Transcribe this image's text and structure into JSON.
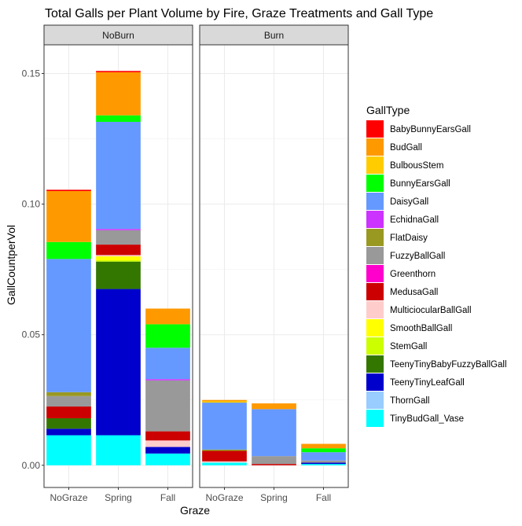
{
  "chart_data": {
    "type": "bar",
    "stacked": true,
    "title": "Total Galls per Plant Volume by Fire, Graze Treatments and Gall Type",
    "xlabel": "Graze",
    "ylabel": "GallCountperVol",
    "ylim": [
      -0.0085,
      0.161
    ],
    "yticks": [
      0.0,
      0.05,
      0.1,
      0.15
    ],
    "ytick_labels": [
      "0.00",
      "0.05",
      "0.10",
      "0.15"
    ],
    "grid": true,
    "legend": {
      "title": "GallType",
      "position": "right"
    },
    "categories": [
      "NoGraze",
      "Spring",
      "Fall"
    ],
    "panels": [
      {
        "name": "NoBurn",
        "stacks": [
          {
            "category": "NoGraze",
            "segments": [
              {
                "gall": "TinyBudGall_Vase",
                "value": 0.0115
              },
              {
                "gall": "TeenyTinyLeafGall",
                "value": 0.0025
              },
              {
                "gall": "TeenyTinyBabyFuzzyBallGall",
                "value": 0.004
              },
              {
                "gall": "MedusaGall",
                "value": 0.0045
              },
              {
                "gall": "FuzzyBallGall",
                "value": 0.004
              },
              {
                "gall": "FlatDaisy",
                "value": 0.0015
              },
              {
                "gall": "DaisyGall",
                "value": 0.051
              },
              {
                "gall": "BunnyEarsGall",
                "value": 0.0065
              },
              {
                "gall": "BudGall",
                "value": 0.0195
              },
              {
                "gall": "BabyBunnyEarsGall",
                "value": 0.0005
              }
            ]
          },
          {
            "category": "Spring",
            "segments": [
              {
                "gall": "TinyBudGall_Vase",
                "value": 0.0115
              },
              {
                "gall": "TeenyTinyLeafGall",
                "value": 0.056
              },
              {
                "gall": "TeenyTinyBabyFuzzyBallGall",
                "value": 0.0105
              },
              {
                "gall": "StemGall",
                "value": 0.0005
              },
              {
                "gall": "SmoothBallGall",
                "value": 0.0015
              },
              {
                "gall": "MulticiocularBallGall",
                "value": 0.0005
              },
              {
                "gall": "MedusaGall",
                "value": 0.004
              },
              {
                "gall": "FuzzyBallGall",
                "value": 0.0055
              },
              {
                "gall": "EchidnaGall",
                "value": 0.0005
              },
              {
                "gall": "DaisyGall",
                "value": 0.041
              },
              {
                "gall": "BunnyEarsGall",
                "value": 0.0025
              },
              {
                "gall": "BudGall",
                "value": 0.0165
              },
              {
                "gall": "BabyBunnyEarsGall",
                "value": 0.0005
              }
            ]
          },
          {
            "category": "Fall",
            "segments": [
              {
                "gall": "TinyBudGall_Vase",
                "value": 0.0045
              },
              {
                "gall": "TeenyTinyLeafGall",
                "value": 0.0025
              },
              {
                "gall": "MulticiocularBallGall",
                "value": 0.0025
              },
              {
                "gall": "MedusaGall",
                "value": 0.0035
              },
              {
                "gall": "FuzzyBallGall",
                "value": 0.0195
              },
              {
                "gall": "EchidnaGall",
                "value": 0.0005
              },
              {
                "gall": "DaisyGall",
                "value": 0.012
              },
              {
                "gall": "BunnyEarsGall",
                "value": 0.009
              },
              {
                "gall": "BudGall",
                "value": 0.006
              }
            ]
          }
        ]
      },
      {
        "name": "Burn",
        "stacks": [
          {
            "category": "NoGraze",
            "segments": [
              {
                "gall": "TinyBudGall_Vase",
                "value": 0.001
              },
              {
                "gall": "MulticiocularBallGall",
                "value": 0.0005
              },
              {
                "gall": "MedusaGall",
                "value": 0.004
              },
              {
                "gall": "FlatDaisy",
                "value": 0.0005
              },
              {
                "gall": "DaisyGall",
                "value": 0.018
              },
              {
                "gall": "BulbousStem",
                "value": 0.0005
              },
              {
                "gall": "BudGall",
                "value": 0.0005
              }
            ]
          },
          {
            "category": "Spring",
            "segments": [
              {
                "gall": "MedusaGall",
                "value": 0.0005
              },
              {
                "gall": "FuzzyBallGall",
                "value": 0.003
              },
              {
                "gall": "DaisyGall",
                "value": 0.018
              },
              {
                "gall": "BudGall",
                "value": 0.0022
              }
            ]
          },
          {
            "category": "Fall",
            "segments": [
              {
                "gall": "TinyBudGall_Vase",
                "value": 0.0005
              },
              {
                "gall": "TeenyTinyLeafGall",
                "value": 0.0005
              },
              {
                "gall": "FuzzyBallGall",
                "value": 0.0008
              },
              {
                "gall": "DaisyGall",
                "value": 0.0032
              },
              {
                "gall": "BunnyEarsGall",
                "value": 0.0015
              },
              {
                "gall": "BudGall",
                "value": 0.0017
              }
            ]
          }
        ]
      }
    ],
    "gall_types": [
      {
        "name": "BabyBunnyEarsGall",
        "color": "#FF0000"
      },
      {
        "name": "BudGall",
        "color": "#FF9900"
      },
      {
        "name": "BulbousStem",
        "color": "#FFCC00"
      },
      {
        "name": "BunnyEarsGall",
        "color": "#00FF00"
      },
      {
        "name": "DaisyGall",
        "color": "#6699FF"
      },
      {
        "name": "EchidnaGall",
        "color": "#CC33FF"
      },
      {
        "name": "FlatDaisy",
        "color": "#999922"
      },
      {
        "name": "FuzzyBallGall",
        "color": "#999999"
      },
      {
        "name": "Greenthorn",
        "color": "#FF00CC"
      },
      {
        "name": "MedusaGall",
        "color": "#CC0000"
      },
      {
        "name": "MulticiocularBallGall",
        "color": "#FFCCCC"
      },
      {
        "name": "SmoothBallGall",
        "color": "#FFFF00"
      },
      {
        "name": "StemGall",
        "color": "#CCFF00"
      },
      {
        "name": "TeenyTinyBabyFuzzyBallGall",
        "color": "#337700"
      },
      {
        "name": "TeenyTinyLeafGall",
        "color": "#0000CC"
      },
      {
        "name": "ThornGall",
        "color": "#99CCFF"
      },
      {
        "name": "TinyBudGall_Vase",
        "color": "#00FFFF"
      }
    ]
  }
}
